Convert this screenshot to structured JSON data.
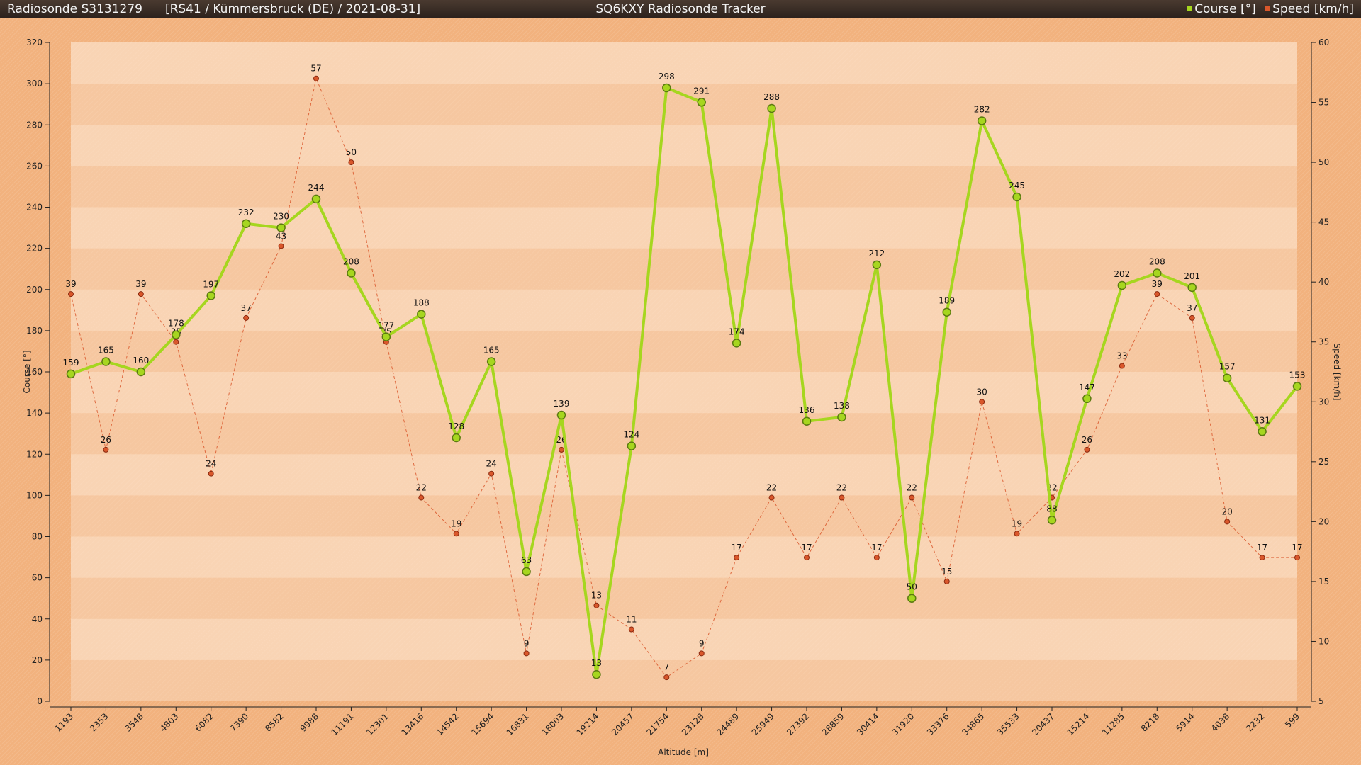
{
  "header": {
    "sonde": "Radiosonde S3131279",
    "meta": "[RS41 / Kümmersbruck (DE) / 2021-08-31]",
    "app_title": "SQ6KXY Radiosonde Tracker"
  },
  "legend": {
    "course": "Course [°]",
    "speed": "Speed [km/h]"
  },
  "colors": {
    "course": "#a6d61f",
    "speed": "#d9572b",
    "title_bar": "#2b211c",
    "plot_bg": "#f8d0ac"
  },
  "chart_data": {
    "type": "line",
    "title": "",
    "xlabel": "Altitude [m]",
    "ylabel": "Course [°]",
    "y2label": "Speed [km/h]",
    "categories": [
      "1193",
      "2353",
      "3548",
      "4803",
      "6082",
      "7390",
      "8582",
      "9988",
      "11191",
      "12301",
      "13416",
      "14542",
      "15694",
      "16831",
      "18003",
      "19214",
      "20457",
      "21754",
      "23128",
      "24489",
      "25949",
      "27392",
      "28859",
      "30414",
      "31920",
      "33376",
      "34865",
      "35533",
      "20437",
      "15214",
      "11285",
      "8218",
      "5914",
      "4038",
      "2232",
      "599"
    ],
    "ylim": [
      0,
      320
    ],
    "y2lim": [
      5,
      60
    ],
    "yticks": [
      0,
      20,
      40,
      60,
      80,
      100,
      120,
      140,
      160,
      180,
      200,
      220,
      240,
      260,
      280,
      300,
      320
    ],
    "y2ticks": [
      5,
      10,
      15,
      20,
      25,
      30,
      35,
      40,
      45,
      50,
      55,
      60
    ],
    "series": [
      {
        "name": "Course [°]",
        "axis": "left",
        "values": [
          159,
          165,
          160,
          178,
          197,
          232,
          230,
          244,
          208,
          177,
          188,
          128,
          165,
          63,
          139,
          13,
          124,
          298,
          291,
          174,
          288,
          136,
          138,
          212,
          50,
          189,
          282,
          245,
          88,
          147,
          202,
          208,
          201,
          157,
          131,
          153
        ]
      },
      {
        "name": "Speed [km/h]",
        "axis": "right",
        "values": [
          39,
          26,
          39,
          35,
          24,
          37,
          43,
          57,
          50,
          35,
          22,
          19,
          24,
          9,
          26,
          13,
          11,
          7,
          9,
          17,
          22,
          17,
          22,
          17,
          22,
          15,
          30,
          19,
          22,
          26,
          33,
          39,
          37,
          20,
          17,
          17
        ]
      }
    ]
  }
}
